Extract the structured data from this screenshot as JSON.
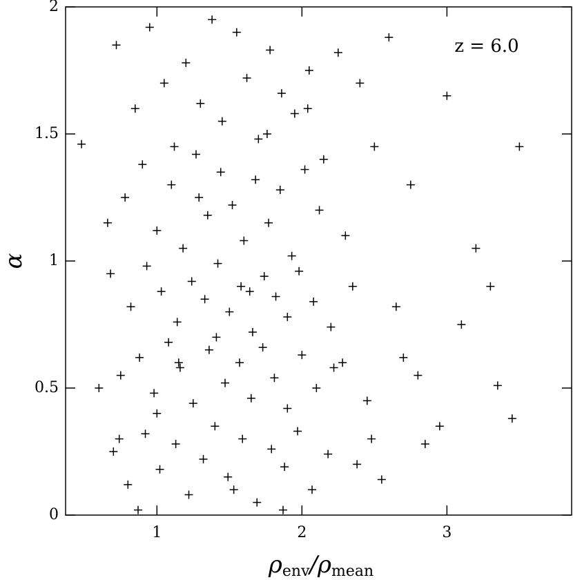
{
  "chart_data": {
    "type": "scatter",
    "xlabel": [
      "ρ",
      "env",
      "/ρ",
      "mean"
    ],
    "ylabel": "α",
    "annotation": "z  =  6.0",
    "color": "#000000",
    "xlim": [
      0.37,
      3.86
    ],
    "xticks": [
      1,
      2,
      3
    ],
    "ylim": [
      0,
      2
    ],
    "yticks": [
      0,
      {
        "value": 0.5,
        "label": "0.5"
      },
      1,
      {
        "value": 1.5,
        "label": "1.5"
      },
      2
    ],
    "series": [
      {
        "x": [
          0.72,
          0.85,
          0.95,
          1.05,
          1.12,
          1.2,
          1.3,
          1.38,
          1.45,
          1.55,
          1.62,
          1.7,
          1.78,
          1.86,
          1.95,
          2.05,
          2.15,
          2.25,
          2.4,
          2.6,
          0.78,
          0.9,
          1.0,
          1.1,
          1.18,
          1.27,
          1.35,
          1.44,
          1.52,
          1.6,
          1.68,
          1.77,
          1.85,
          1.93,
          2.02,
          2.12,
          2.3,
          2.5,
          2.75,
          3.0,
          0.68,
          0.82,
          0.93,
          1.03,
          1.14,
          1.24,
          1.33,
          1.42,
          1.5,
          1.58,
          1.66,
          1.74,
          1.82,
          1.9,
          1.98,
          2.08,
          2.2,
          2.35,
          2.65,
          3.2,
          0.75,
          0.88,
          0.98,
          1.08,
          1.16,
          1.25,
          1.36,
          1.47,
          1.57,
          1.65,
          1.73,
          1.81,
          1.9,
          2.0,
          2.1,
          2.22,
          2.45,
          2.7,
          2.95,
          3.35,
          0.7,
          0.8,
          0.92,
          1.02,
          1.13,
          1.22,
          1.32,
          1.4,
          1.49,
          1.59,
          1.69,
          1.79,
          1.88,
          1.97,
          2.07,
          2.18,
          2.38,
          2.55,
          2.85,
          3.45,
          0.48,
          0.6,
          0.66,
          0.74,
          0.87,
          1.0,
          1.15,
          1.29,
          1.41,
          1.53,
          1.64,
          1.76,
          1.87,
          2.04,
          2.28,
          2.48,
          2.8,
          3.1,
          3.3,
          3.5
        ],
        "values": [
          1.85,
          1.6,
          1.92,
          1.7,
          1.45,
          1.78,
          1.62,
          1.95,
          1.55,
          1.9,
          1.72,
          1.48,
          1.83,
          1.66,
          1.58,
          1.75,
          1.4,
          1.82,
          1.7,
          1.88,
          1.25,
          1.38,
          1.12,
          1.3,
          1.05,
          1.42,
          1.18,
          1.35,
          1.22,
          1.08,
          1.32,
          1.15,
          1.28,
          1.02,
          1.36,
          1.2,
          1.1,
          1.45,
          1.3,
          1.65,
          0.95,
          0.82,
          0.98,
          0.88,
          0.76,
          0.92,
          0.85,
          0.99,
          0.8,
          0.9,
          0.72,
          0.94,
          0.86,
          0.78,
          0.96,
          0.84,
          0.74,
          0.9,
          0.82,
          1.05,
          0.55,
          0.62,
          0.48,
          0.68,
          0.58,
          0.44,
          0.65,
          0.52,
          0.6,
          0.46,
          0.66,
          0.54,
          0.42,
          0.63,
          0.5,
          0.58,
          0.45,
          0.62,
          0.35,
          0.51,
          0.25,
          0.12,
          0.32,
          0.18,
          0.28,
          0.08,
          0.22,
          0.35,
          0.15,
          0.3,
          0.05,
          0.26,
          0.19,
          0.33,
          0.1,
          0.24,
          0.2,
          0.14,
          0.28,
          0.38,
          1.46,
          0.5,
          1.15,
          0.3,
          0.02,
          0.4,
          0.6,
          1.25,
          0.7,
          0.1,
          0.88,
          1.5,
          0.02,
          1.6,
          0.6,
          0.3,
          0.55,
          0.75,
          0.9,
          1.45
        ]
      }
    ]
  }
}
